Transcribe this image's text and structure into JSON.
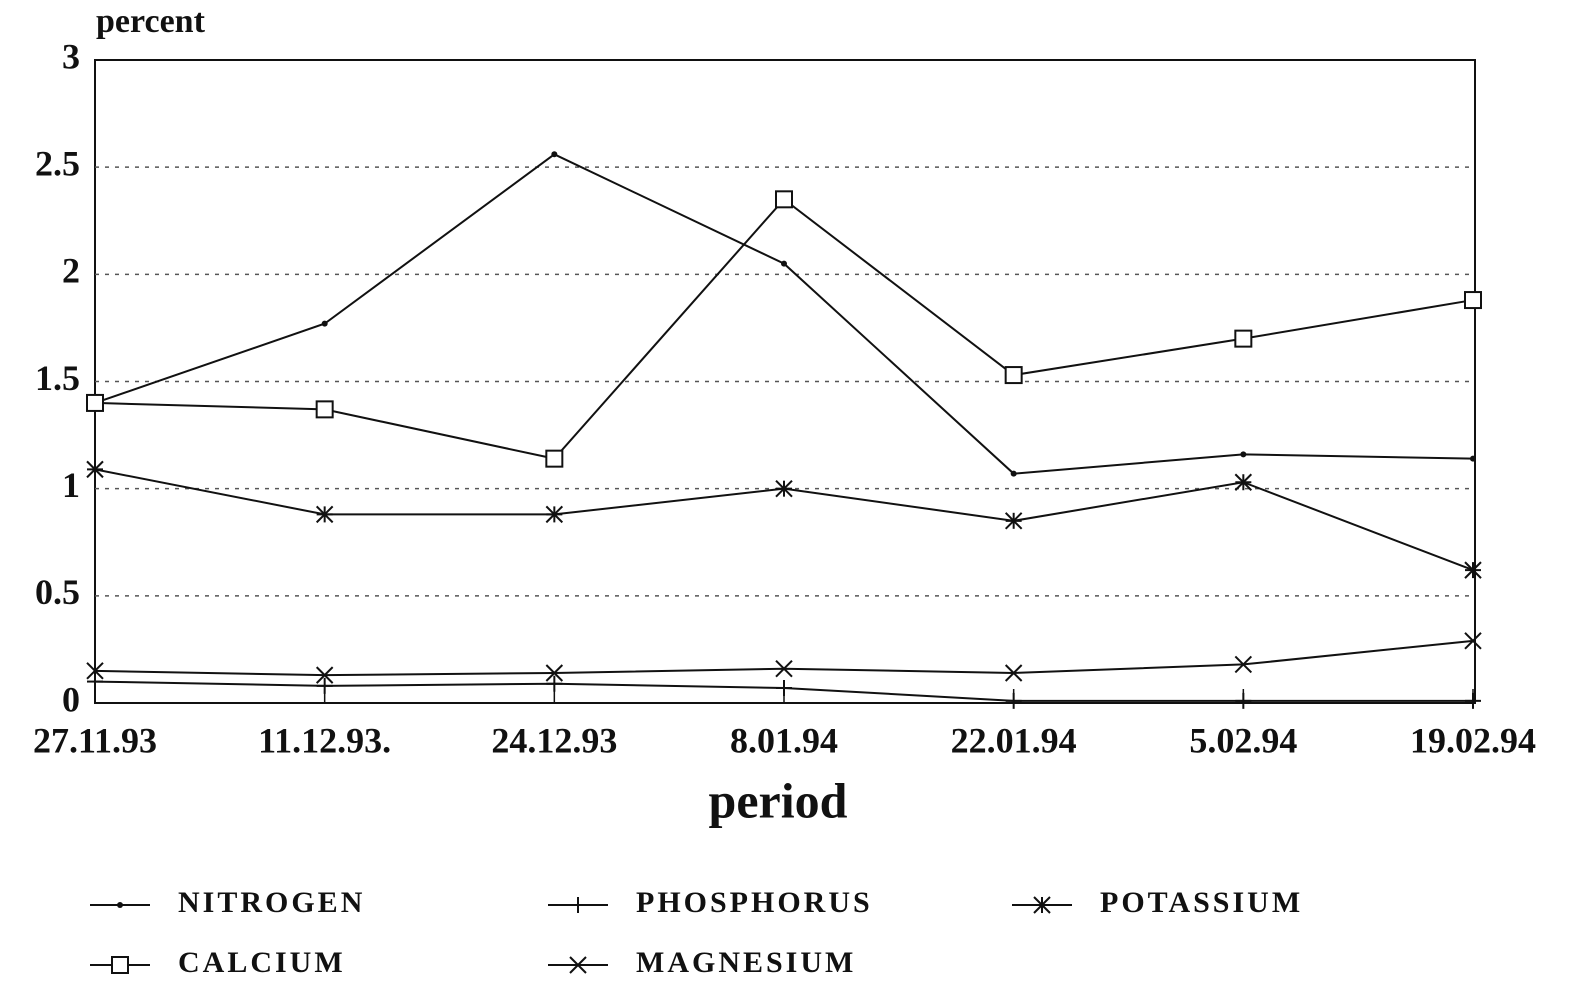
{
  "chart_data": {
    "type": "line",
    "y_label": "percent",
    "x_label": "period",
    "categories": [
      "27.11.93",
      "11.12.93.",
      "24.12.93",
      "8.01.94",
      "22.01.94",
      "5.02.94",
      "19.02.94"
    ],
    "ylim": [
      0,
      3
    ],
    "yticks": [
      0,
      0.5,
      1,
      1.5,
      2,
      2.5,
      3
    ],
    "grid": true,
    "legend": "bottom",
    "series": [
      {
        "name": "NITROGEN",
        "color": "#111111",
        "marker": "dot",
        "values": [
          1.4,
          1.77,
          2.56,
          2.05,
          1.07,
          1.16,
          1.14
        ]
      },
      {
        "name": "PHOSPHORUS",
        "color": "#111111",
        "marker": "plus",
        "values": [
          0.1,
          0.08,
          0.09,
          0.07,
          0.01,
          0.01,
          0.01
        ]
      },
      {
        "name": "POTASSIUM",
        "color": "#111111",
        "marker": "asterisk",
        "values": [
          1.09,
          0.88,
          0.88,
          1.0,
          0.85,
          1.03,
          0.62
        ]
      },
      {
        "name": "CALCIUM",
        "color": "#111111",
        "marker": "square",
        "values": [
          1.4,
          1.37,
          1.14,
          2.35,
          1.53,
          1.7,
          1.88
        ]
      },
      {
        "name": "MAGNESIUM",
        "color": "#111111",
        "marker": "x",
        "values": [
          0.15,
          0.13,
          0.14,
          0.16,
          0.14,
          0.18,
          0.29
        ]
      }
    ]
  }
}
